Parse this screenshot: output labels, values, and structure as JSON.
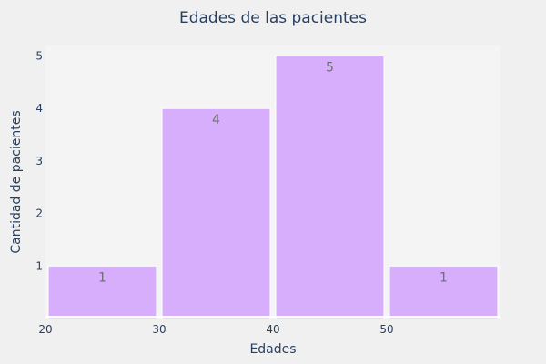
{
  "chart_data": {
    "type": "bar",
    "title": "Edades de las pacientes",
    "xlabel": "Edades",
    "ylabel": "Cantidad de pacientes",
    "bins": [
      {
        "start": 20,
        "end": 30,
        "value": 1
      },
      {
        "start": 30,
        "end": 40,
        "value": 4
      },
      {
        "start": 40,
        "end": 50,
        "value": 5
      },
      {
        "start": 50,
        "end": 60,
        "value": 1
      }
    ],
    "x_ticks": [
      20,
      30,
      40,
      50
    ],
    "y_ticks": [
      1,
      2,
      3,
      4,
      5
    ],
    "xlim": [
      20,
      60
    ],
    "ylim": [
      0,
      5.2
    ],
    "bar_color": "#d6aefc",
    "plot_background": "#f4f4f4",
    "paper_background": "#f0f0f0",
    "grid": false,
    "legend": "none"
  }
}
